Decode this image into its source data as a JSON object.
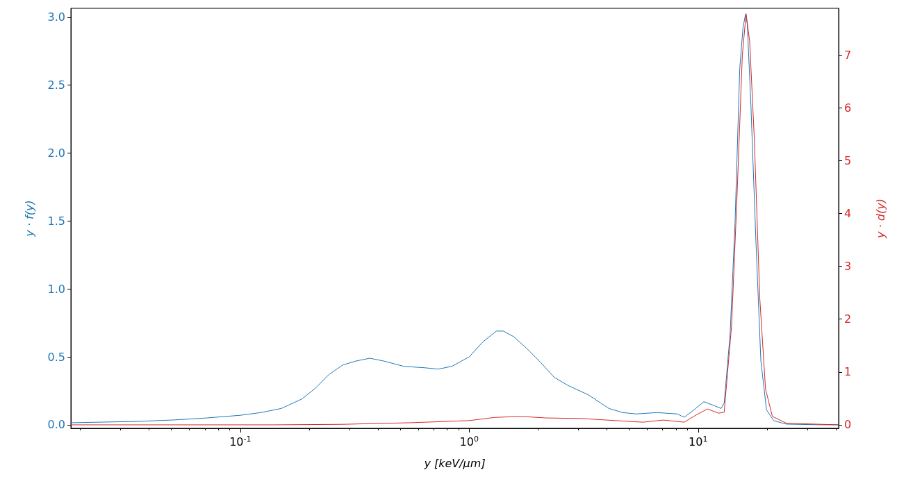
{
  "chart_data": {
    "type": "line",
    "xlabel": "y [keV/μm]",
    "ylabel": "y · f(y)",
    "y2label": "y · d(y)",
    "log": "x",
    "grid": false,
    "marker": "none",
    "line_style": "solid",
    "xlim": [
      0.0182,
      41.1
    ],
    "xticks": [
      {
        "value": 0.1,
        "label": "10$^{-1}$"
      },
      {
        "value": 1,
        "label": "10$^{0}$"
      },
      {
        "value": 10,
        "label": "10$^{1}$"
      }
    ],
    "ylim": [
      -0.026,
      3.066
    ],
    "yticks": [
      {
        "value": 0,
        "label": "0.0"
      },
      {
        "value": 0.5,
        "label": "0.5"
      },
      {
        "value": 1,
        "label": "1.0"
      },
      {
        "value": 1.5,
        "label": "1.5"
      },
      {
        "value": 2,
        "label": "2.0"
      },
      {
        "value": 2.5,
        "label": "2.5"
      },
      {
        "value": 3,
        "label": "3.0"
      }
    ],
    "y2lim": [
      -0.066,
      7.88
    ],
    "y2ticks": [
      0,
      1,
      2,
      3,
      4,
      5,
      6,
      7
    ],
    "series": [
      {
        "color": "#1f77b4",
        "x": [
          0.0182,
          0.0254,
          0.0357,
          0.0503,
          0.071,
          0.1,
          0.123,
          0.151,
          0.186,
          0.213,
          0.244,
          0.28,
          0.321,
          0.368,
          0.422,
          0.519,
          0.638,
          0.732,
          0.839,
          1.0,
          1.147,
          1.315,
          1.41,
          1.56,
          1.79,
          2.05,
          2.35,
          2.7,
          3.32,
          4.08,
          4.68,
          5.37,
          6.6,
          8.11,
          8.69,
          9.6,
          10.6,
          11.8,
          12.6,
          13.0,
          13.8,
          14.5,
          15.2,
          15.7,
          16.1,
          16.4,
          17.0,
          17.9,
          18.8,
          19.9,
          21.4,
          24.3,
          34.3,
          41.1
        ],
        "values": [
          0.015,
          0.02,
          0.025,
          0.035,
          0.05,
          0.07,
          0.09,
          0.12,
          0.19,
          0.27,
          0.37,
          0.44,
          0.47,
          0.49,
          0.47,
          0.43,
          0.42,
          0.41,
          0.43,
          0.5,
          0.61,
          0.69,
          0.69,
          0.65,
          0.56,
          0.46,
          0.35,
          0.29,
          0.22,
          0.12,
          0.09,
          0.08,
          0.09,
          0.08,
          0.055,
          0.11,
          0.17,
          0.14,
          0.12,
          0.16,
          0.67,
          1.49,
          2.62,
          2.92,
          3.02,
          2.95,
          2.36,
          1.34,
          0.47,
          0.11,
          0.03,
          0.005,
          0,
          0
        ]
      },
      {
        "color": "#d62728",
        "axis": "y2",
        "x": [
          0.0182,
          0.141,
          0.28,
          0.556,
          1.0,
          1.29,
          1.67,
          2.17,
          3.08,
          4.36,
          5.73,
          7.06,
          8.69,
          9.93,
          11.0,
          12.3,
          13.0,
          14.0,
          14.8,
          15.6,
          16.2,
          16.8,
          17.6,
          18.6,
          19.7,
          21.1,
          24.3,
          41.1
        ],
        "values": [
          0,
          0,
          0.01,
          0.04,
          0.08,
          0.14,
          0.16,
          0.13,
          0.12,
          0.08,
          0.05,
          0.09,
          0.05,
          0.2,
          0.3,
          0.22,
          0.24,
          1.87,
          4.36,
          6.99,
          7.78,
          7.25,
          5.41,
          2.39,
          0.68,
          0.16,
          0.03,
          0
        ]
      }
    ]
  }
}
